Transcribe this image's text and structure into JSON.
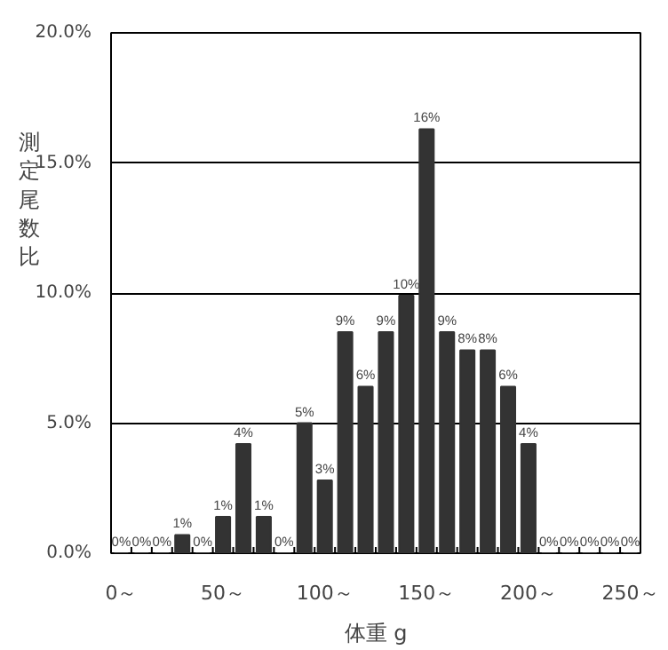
{
  "chart_data": {
    "type": "bar",
    "xlabel": "体重 g",
    "ylabel": "測定尾数比",
    "categories": [
      "0～",
      null,
      null,
      null,
      null,
      "50～",
      null,
      null,
      null,
      null,
      "100～",
      null,
      null,
      null,
      null,
      "150～",
      null,
      null,
      null,
      null,
      "200～",
      null,
      null,
      null,
      null,
      "250～"
    ],
    "values": [
      0,
      0,
      0,
      0.7,
      0,
      1.4,
      4.2,
      1.4,
      0,
      5.0,
      2.8,
      8.5,
      6.4,
      8.5,
      9.9,
      16.3,
      8.5,
      7.8,
      7.8,
      6.4,
      4.2,
      0,
      0,
      0,
      0,
      0
    ],
    "value_labels": [
      "0%",
      "0%",
      "0%",
      "1%",
      "0%",
      "1%",
      "4%",
      "1%",
      "0%",
      "5%",
      "3%",
      "9%",
      "6%",
      "9%",
      "10%",
      "16%",
      "9%",
      "8%",
      "8%",
      "6%",
      "4%",
      "0%",
      "0%",
      "0%",
      "0%",
      "0%"
    ],
    "color": "#333333",
    "ylim": [
      0,
      20
    ],
    "yticks": [
      {
        "value": 0,
        "label": "0.0%"
      },
      {
        "value": 5,
        "label": "5.0%"
      },
      {
        "value": 10,
        "label": "10.0%"
      },
      {
        "value": 15,
        "label": "15.0%"
      },
      {
        "value": 20,
        "label": "20.0%"
      }
    ],
    "grid": "y"
  }
}
